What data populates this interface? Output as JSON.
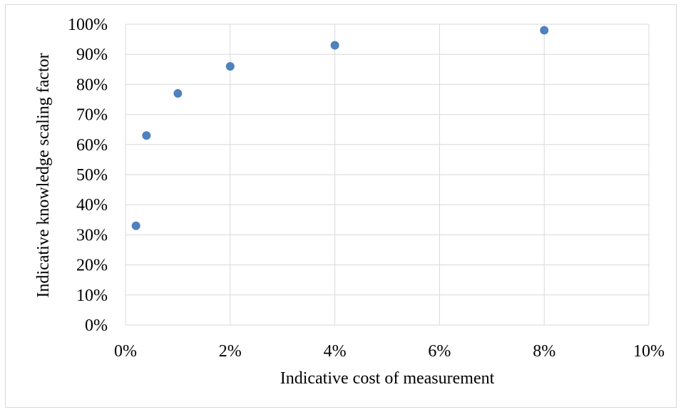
{
  "chart_data": {
    "type": "scatter",
    "xlabel": "Indicative cost of measurement",
    "ylabel": "Indicative knowledge scaling factor",
    "xlim": [
      0,
      0.1
    ],
    "ylim": [
      0,
      1.0
    ],
    "x_ticks": [
      "0%",
      "2%",
      "4%",
      "6%",
      "8%",
      "10%"
    ],
    "y_ticks": [
      "0%",
      "10%",
      "20%",
      "30%",
      "40%",
      "50%",
      "60%",
      "70%",
      "80%",
      "90%",
      "100%"
    ],
    "grid": true,
    "legend": "none",
    "series": [
      {
        "points": [
          {
            "x": 0.002,
            "y": 0.33
          },
          {
            "x": 0.004,
            "y": 0.63
          },
          {
            "x": 0.01,
            "y": 0.77
          },
          {
            "x": 0.02,
            "y": 0.86
          },
          {
            "x": 0.04,
            "y": 0.93
          },
          {
            "x": 0.08,
            "y": 0.98
          }
        ],
        "color": "#4f81bd"
      }
    ],
    "gridline_color": "#d9d9d9",
    "border_color": "#d9d9d9"
  }
}
